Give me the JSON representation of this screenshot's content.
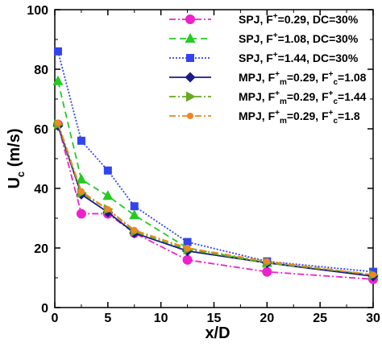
{
  "chart_data": {
    "type": "line",
    "xlabel": "x/D",
    "ylabel": {
      "main": "U",
      "sub": "c",
      "rest": " (m/s)"
    },
    "xlim": [
      0,
      30
    ],
    "ylim": [
      0,
      100
    ],
    "xticks": [
      0,
      5,
      10,
      15,
      20,
      25,
      30
    ],
    "yticks": [
      0,
      20,
      40,
      60,
      80,
      100
    ],
    "grid": false,
    "legend_position": "top-right",
    "series": [
      {
        "legend_label": [
          {
            "t": "SPJ, F"
          },
          {
            "t": "+",
            "sup": true
          },
          {
            "t": "=0.29, DC=30%"
          }
        ],
        "color": "#ee22cc",
        "dash": "8,3,2,3",
        "marker": "circle",
        "x": [
          0.3,
          2.5,
          5,
          7.5,
          12.5,
          20,
          30
        ],
        "y": [
          61.5,
          31.5,
          31.5,
          25,
          16,
          12,
          9.5
        ]
      },
      {
        "legend_label": [
          {
            "t": "SPJ, F"
          },
          {
            "t": "+",
            "sup": true
          },
          {
            "t": "=1.08, DC=30%"
          }
        ],
        "color": "#22cc22",
        "dash": "8,5",
        "marker": "triangle",
        "x": [
          0.3,
          2.5,
          5,
          7.5,
          12.5,
          20,
          30
        ],
        "y": [
          76,
          43,
          37.5,
          31,
          20,
          15,
          11
        ]
      },
      {
        "legend_label": [
          {
            "t": "SPJ, F"
          },
          {
            "t": "+",
            "sup": true
          },
          {
            "t": "=1.44, DC=30%"
          }
        ],
        "color": "#3344ee",
        "dash": "2,2",
        "marker": "square",
        "x": [
          0.3,
          2.5,
          5,
          7.5,
          12.5,
          20,
          30
        ],
        "y": [
          86,
          56,
          46,
          34,
          22,
          15.5,
          12
        ]
      },
      {
        "legend_label": [
          {
            "t": "MPJ, F"
          },
          {
            "t": "+",
            "sup": true
          },
          {
            "t": "m",
            "sub": true
          },
          {
            "t": "=0.29, F"
          },
          {
            "t": "+",
            "sup": true
          },
          {
            "t": "c",
            "sub": true
          },
          {
            "t": "=1.08"
          }
        ],
        "color": "#1a1a8c",
        "dash": "",
        "marker": "diamond",
        "x": [
          0.3,
          2.5,
          5,
          7.5,
          12.5,
          20,
          30
        ],
        "y": [
          61,
          38,
          32,
          25,
          19,
          15,
          10.5
        ]
      },
      {
        "legend_label": [
          {
            "t": "MPJ, F"
          },
          {
            "t": "+",
            "sup": true
          },
          {
            "t": "m",
            "sub": true
          },
          {
            "t": "=0.29, F"
          },
          {
            "t": "+",
            "sup": true
          },
          {
            "t": "c",
            "sub": true
          },
          {
            "t": "=1.44"
          }
        ],
        "color": "#66aa22",
        "dash": "8,3,2,3",
        "marker": "triangle-right",
        "x": [
          0.3,
          2.5,
          5,
          7.5,
          12.5,
          20,
          30
        ],
        "y": [
          61.5,
          38.5,
          33,
          25.5,
          19.5,
          15,
          11
        ]
      },
      {
        "legend_label": [
          {
            "t": "MPJ, F"
          },
          {
            "t": "+",
            "sup": true
          },
          {
            "t": "m",
            "sub": true
          },
          {
            "t": "=0.29, F"
          },
          {
            "t": "+",
            "sup": true
          },
          {
            "t": "c",
            "sub": true
          },
          {
            "t": "=1.8"
          }
        ],
        "color": "#ee8822",
        "dash": "8,3,2,3",
        "marker": "small-circle",
        "x": [
          0.3,
          2.5,
          5,
          7.5,
          12.5,
          20,
          30
        ],
        "y": [
          62,
          39,
          33,
          26,
          20,
          15.5,
          11
        ]
      }
    ]
  }
}
